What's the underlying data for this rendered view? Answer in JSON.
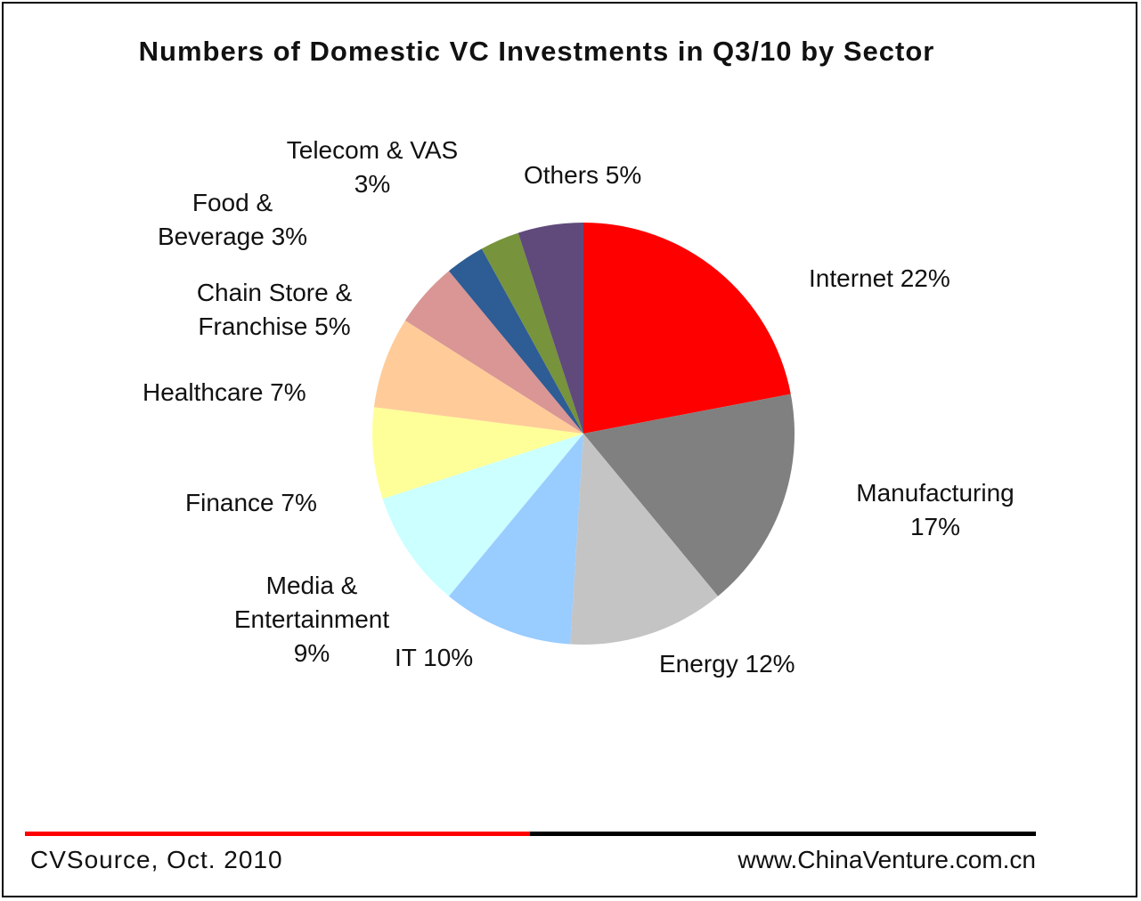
{
  "chart_data": {
    "type": "pie",
    "title": "Numbers of Domestic VC Investments  in Q3/10 by Sector",
    "slices": [
      {
        "label_lines": [
          "Internet 22%"
        ],
        "value": 22,
        "color": "#ff0000"
      },
      {
        "label_lines": [
          "Manufacturing",
          "17%"
        ],
        "value": 17,
        "color": "#808080"
      },
      {
        "label_lines": [
          "Energy 12%"
        ],
        "value": 12,
        "color": "#c4c4c4"
      },
      {
        "label_lines": [
          "IT 10%"
        ],
        "value": 10,
        "color": "#99ccff"
      },
      {
        "label_lines": [
          "Media &",
          "Entertainment",
          "9%"
        ],
        "value": 9,
        "color": "#ccffff"
      },
      {
        "label_lines": [
          "Finance 7%"
        ],
        "value": 7,
        "color": "#ffff99"
      },
      {
        "label_lines": [
          "Healthcare 7%"
        ],
        "value": 7,
        "color": "#ffcc99"
      },
      {
        "label_lines": [
          "Chain Store &",
          "Franchise 5%"
        ],
        "value": 5,
        "color": "#d99694"
      },
      {
        "label_lines": [
          "Food &",
          "Beverage 3%"
        ],
        "value": 3,
        "color": "#2e5c94"
      },
      {
        "label_lines": [
          "Telecom & VAS",
          "3%"
        ],
        "value": 3,
        "color": "#77933c"
      },
      {
        "label_lines": [
          "Others 5%"
        ],
        "value": 5,
        "color": "#604a7b"
      }
    ]
  },
  "footer": {
    "source": "CVSource, Oct. 2010",
    "website": "www.ChinaVenture.com.cn",
    "line_colors": [
      "#ff0000",
      "#000000"
    ]
  }
}
